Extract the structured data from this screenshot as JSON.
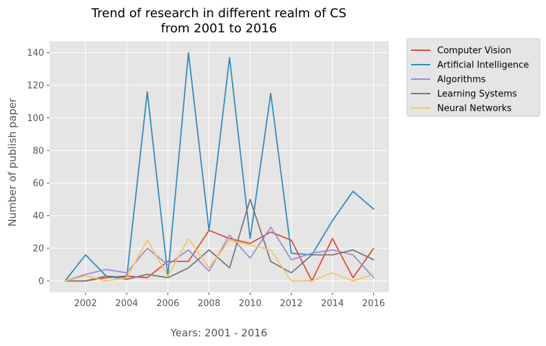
{
  "chart_data": {
    "type": "line",
    "title_lines": [
      "Trend of research in different realm of CS",
      "from 2001 to 2016"
    ],
    "xlabel": "Years: 2001 - 2016",
    "ylabel": "Number of publish paper",
    "xlim": [
      2000.25,
      2016.75
    ],
    "ylim": [
      -7,
      147
    ],
    "xticks": [
      2002,
      2004,
      2006,
      2008,
      2010,
      2012,
      2014,
      2016
    ],
    "yticks": [
      0,
      20,
      40,
      60,
      80,
      100,
      120,
      140
    ],
    "grid": true,
    "legend_position": "outside-top-right",
    "x": [
      2001,
      2002,
      2003,
      2004,
      2005,
      2006,
      2007,
      2008,
      2009,
      2010,
      2011,
      2012,
      2013,
      2014,
      2015,
      2016
    ],
    "series": [
      {
        "name": "Computer Vision",
        "color": "#E24A33",
        "values": [
          0,
          0,
          2,
          3,
          2,
          12,
          12,
          31,
          26,
          23,
          30,
          25,
          0,
          26,
          2,
          20
        ]
      },
      {
        "name": "Artificial Intelligence",
        "color": "#348ABD",
        "values": [
          0,
          16,
          3,
          2,
          116,
          3,
          140,
          31,
          137,
          26,
          115,
          17,
          16,
          37,
          55,
          44
        ]
      },
      {
        "name": "Algorithms",
        "color": "#988ED5",
        "values": [
          0,
          4,
          7,
          5,
          20,
          10,
          19,
          6,
          28,
          14,
          33,
          13,
          17,
          19,
          16,
          2
        ]
      },
      {
        "name": "Learning Systems",
        "color": "#777777",
        "values": [
          0,
          0,
          3,
          1,
          4,
          2,
          8,
          19,
          8,
          50,
          12,
          5,
          16,
          16,
          19,
          13
        ]
      },
      {
        "name": "Neural Networks",
        "color": "#FBC15E",
        "values": [
          0,
          3,
          0,
          2,
          25,
          3,
          26,
          8,
          25,
          22,
          19,
          0,
          0,
          5,
          0,
          4
        ]
      }
    ]
  },
  "style": {
    "plot_bg": "#E5E5E5",
    "grid_color": "#FFFFFF",
    "legend_bg": "#E5E5E5",
    "legend_border": "#CCCCCC"
  }
}
